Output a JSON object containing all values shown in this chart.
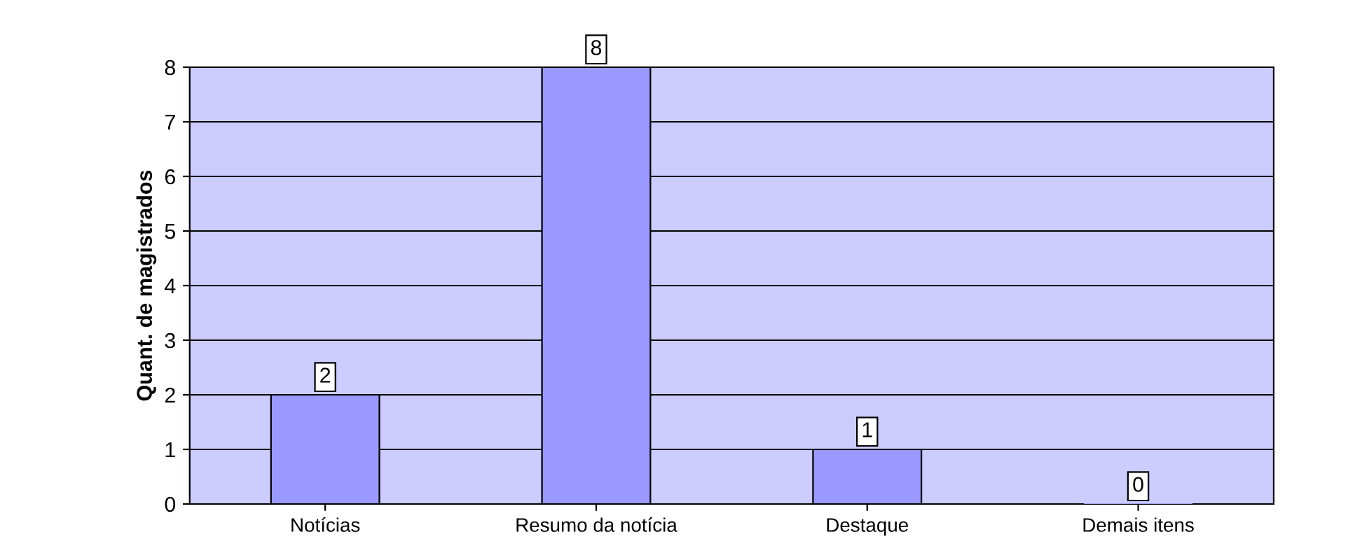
{
  "chart_data": {
    "type": "bar",
    "ylabel": "Quant. de magistrados",
    "categories": [
      "Notícias",
      "Resumo da notícia",
      "Destaque",
      "Demais itens"
    ],
    "values": [
      2,
      8,
      1,
      0
    ],
    "color": "#9999ff",
    "ylim": [
      0,
      8
    ],
    "yticks": [
      0,
      1,
      2,
      3,
      4,
      5,
      6,
      7,
      8
    ],
    "grid": "y",
    "data_labels": true,
    "legend": false
  }
}
